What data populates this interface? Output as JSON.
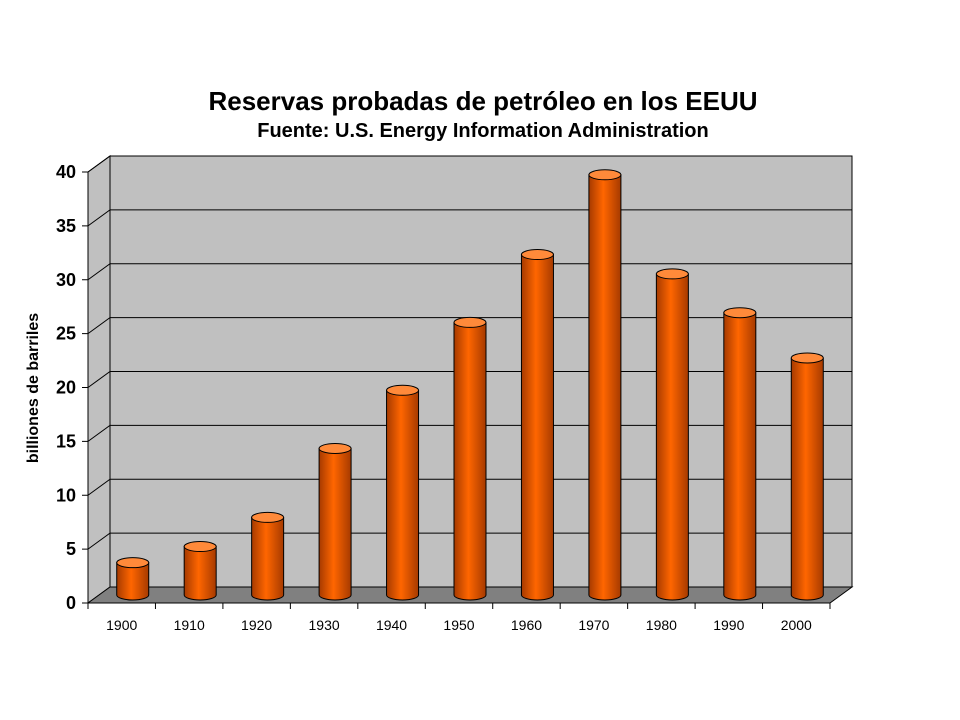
{
  "chart_data": {
    "type": "bar",
    "title": "Reservas probadas de petróleo en los EEUU",
    "subtitle": "Fuente: U.S. Energy Information Administration",
    "xlabel": "",
    "ylabel": "billiones de barriles",
    "categories": [
      "1900",
      "1910",
      "1920",
      "1930",
      "1940",
      "1950",
      "1960",
      "1970",
      "1980",
      "1990",
      "2000"
    ],
    "values": [
      3,
      4.5,
      7.2,
      13.6,
      19,
      25.3,
      31.6,
      39,
      29.8,
      26.2,
      22
    ],
    "ylim": [
      0,
      40
    ],
    "yticks": [
      0,
      5,
      10,
      15,
      20,
      25,
      30,
      35,
      40
    ],
    "grid": true,
    "legend": "none",
    "colors": {
      "bar": "#ff6600",
      "bar_dark": "#a63a00",
      "bar_light": "#ff8a3a",
      "wall": "#c0c0c0",
      "floor": "#808080",
      "gridline": "#000000"
    }
  }
}
